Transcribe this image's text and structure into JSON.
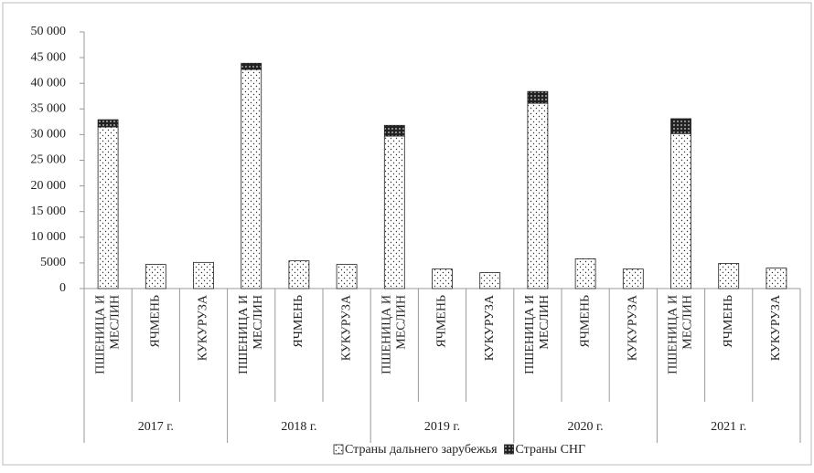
{
  "chart_data": {
    "type": "stacked_bar",
    "categories": [
      [
        "ПШЕНИЦА И",
        "МЕСЛИН"
      ],
      [
        "ЯЧМЕНЬ"
      ],
      [
        "КУКУРУЗА"
      ],
      [
        "ПШЕНИЦА И",
        "МЕСЛИН"
      ],
      [
        "ЯЧМЕНЬ"
      ],
      [
        "КУКУРУЗА"
      ],
      [
        "ПШЕНИЦА И",
        "МЕСЛИН"
      ],
      [
        "ЯЧМЕНЬ"
      ],
      [
        "КУКУРУЗА"
      ],
      [
        "ПШЕНИЦА И",
        "МЕСЛИН"
      ],
      [
        "ЯЧМЕНЬ"
      ],
      [
        "КУКУРУЗА"
      ],
      [
        "ПШЕНИЦА И",
        "МЕСЛИН"
      ],
      [
        "ЯЧМЕНЬ"
      ],
      [
        "КУКУРУЗА"
      ]
    ],
    "groups": [
      "2017 г.",
      "2018 г.",
      "2019 г.",
      "2020 г.",
      "2021 г."
    ],
    "series": [
      {
        "name": "Страны дальнего зарубежья",
        "values": [
          31500,
          4700,
          5100,
          42700,
          5400,
          4700,
          29700,
          3800,
          3100,
          36100,
          5800,
          3800,
          30200,
          4900,
          4000
        ]
      },
      {
        "name": "Страны СНГ",
        "values": [
          1400,
          0,
          0,
          1200,
          0,
          0,
          2100,
          0,
          0,
          2300,
          0,
          0,
          2900,
          0,
          0
        ]
      }
    ],
    "ylim": [
      0,
      50000
    ],
    "yticks": [
      0,
      {
        "value": 5000,
        "label": "5000"
      },
      {
        "value": 10000,
        "label": "10 000"
      },
      {
        "value": 15000,
        "label": "15 000"
      },
      {
        "value": 20000,
        "label": "20 000"
      },
      {
        "value": 25000,
        "label": "25 000"
      },
      {
        "value": 30000,
        "label": "30 000"
      },
      {
        "value": 35000,
        "label": "35 000"
      },
      {
        "value": 40000,
        "label": "40 000"
      },
      {
        "value": 45000,
        "label": "45 000"
      },
      {
        "value": 50000,
        "label": "50 000"
      }
    ],
    "grid": false
  }
}
